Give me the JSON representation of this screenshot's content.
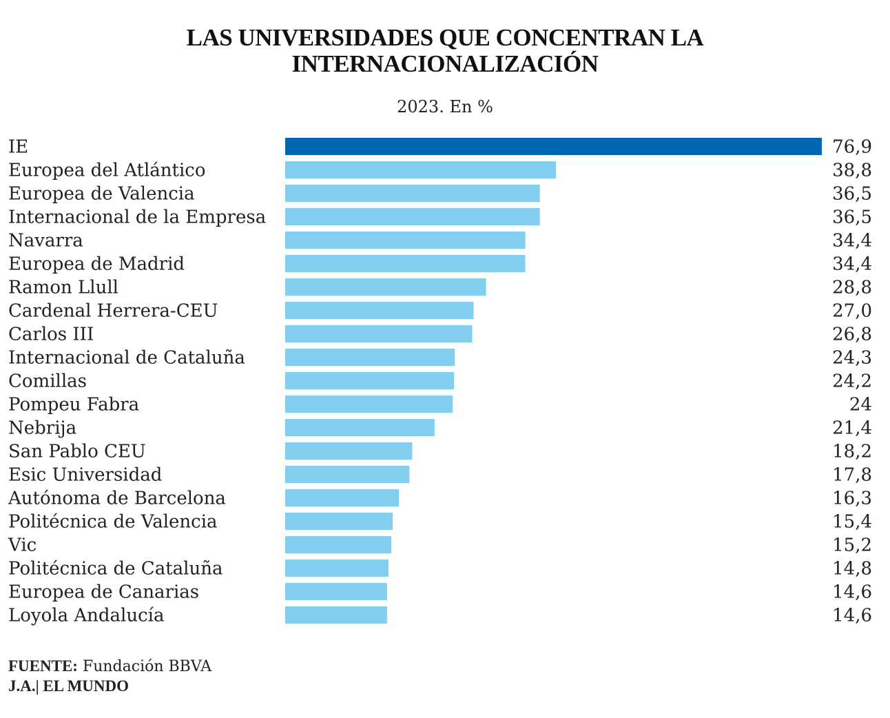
{
  "header": {
    "title_line1": "LAS UNIVERSIDADES QUE CONCENTRAN LA",
    "title_line2": "INTERNACIONALIZACIÓN",
    "subtitle": "2023. En %"
  },
  "colors": {
    "highlight_bar": "#0066b3",
    "bar": "#82cfef",
    "text": "#222222"
  },
  "chart_data": {
    "type": "bar",
    "orientation": "horizontal",
    "title": "LAS UNIVERSIDADES QUE CONCENTRAN LA INTERNACIONALIZACIÓN",
    "subtitle": "2023. En %",
    "xlim": [
      0,
      76.9
    ],
    "grid": false,
    "legend": "none",
    "highlight_index": 0,
    "categories": [
      "IE",
      "Europea del Atlántico",
      "Europea de Valencia",
      "Internacional de la Empresa",
      "Navarra",
      "Europea de Madrid",
      "Ramon Llull",
      "Cardenal Herrera-CEU",
      "Carlos III",
      "Internacional de Cataluña",
      "Comillas",
      "Pompeu Fabra",
      "Nebrija",
      "San Pablo CEU",
      "Esic Universidad",
      "Autónoma de Barcelona",
      "Politécnica de Valencia",
      "Vic",
      "Politécnica de Cataluña",
      "Europea de Canarias",
      "Loyola Andalucía"
    ],
    "values": [
      76.9,
      38.8,
      36.5,
      36.5,
      34.4,
      34.4,
      28.8,
      27.0,
      26.8,
      24.3,
      24.2,
      24,
      21.4,
      18.2,
      17.8,
      16.3,
      15.4,
      15.2,
      14.8,
      14.6,
      14.6
    ],
    "value_labels": [
      "76,9",
      "38,8",
      "36,5",
      "36,5",
      "34,4",
      "34,4",
      "28,8",
      "27,0",
      "26,8",
      "24,3",
      "24,2",
      "24",
      "21,4",
      "18,2",
      "17,8",
      "16,3",
      "15,4",
      "15,2",
      "14,8",
      "14,6",
      "14,6"
    ]
  },
  "footer": {
    "source_label": "FUENTE:",
    "source_value": "Fundación BBVA",
    "credit": "J.A.| EL MUNDO"
  }
}
